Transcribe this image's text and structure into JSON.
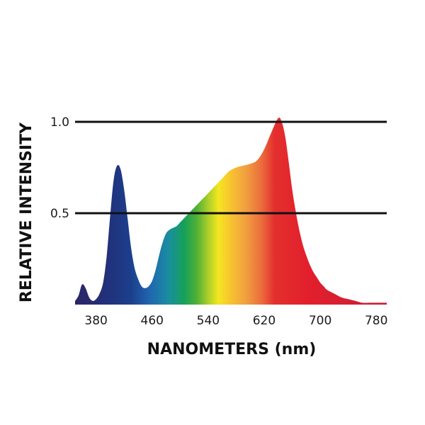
{
  "chart_data": {
    "type": "area",
    "title": "",
    "xlabel": "NANOMETERS (nm)",
    "ylabel": "RELATIVE INTENSITY",
    "xlim": [
      350,
      795
    ],
    "ylim": [
      0,
      1.0
    ],
    "x_ticks": [
      380,
      460,
      540,
      620,
      700,
      780
    ],
    "y_ticks": [
      0.5,
      1.0
    ],
    "y_tick_labels": [
      "0.5",
      "1.0"
    ],
    "grid": "horizontal",
    "fill": "visible-spectrum-gradient",
    "series": [
      {
        "x": [
          350,
          355,
          360,
          365,
          370,
          375,
          380,
          385,
          390,
          395,
          400,
          405,
          410,
          415,
          420,
          425,
          430,
          435,
          440,
          445,
          450,
          455,
          460,
          465,
          470,
          475,
          480,
          485,
          490,
          495,
          500,
          505,
          510,
          515,
          520,
          530,
          540,
          550,
          560,
          570,
          580,
          590,
          600,
          610,
          620,
          630,
          640,
          645,
          650,
          655,
          660,
          665,
          670,
          675,
          680,
          685,
          690,
          695,
          700,
          705,
          710,
          720,
          730,
          740,
          750,
          760,
          770,
          780,
          795
        ],
        "values": [
          0.02,
          0.05,
          0.11,
          0.09,
          0.04,
          0.02,
          0.03,
          0.06,
          0.12,
          0.26,
          0.48,
          0.68,
          0.76,
          0.74,
          0.63,
          0.47,
          0.31,
          0.2,
          0.14,
          0.1,
          0.09,
          0.1,
          0.13,
          0.19,
          0.27,
          0.34,
          0.39,
          0.41,
          0.42,
          0.43,
          0.45,
          0.47,
          0.49,
          0.51,
          0.53,
          0.57,
          0.61,
          0.65,
          0.69,
          0.73,
          0.75,
          0.76,
          0.77,
          0.79,
          0.85,
          0.94,
          1.02,
          1.0,
          0.92,
          0.78,
          0.63,
          0.51,
          0.41,
          0.33,
          0.27,
          0.22,
          0.18,
          0.15,
          0.12,
          0.1,
          0.08,
          0.06,
          0.04,
          0.03,
          0.02,
          0.01,
          0.01,
          0.01,
          0.01
        ]
      }
    ]
  }
}
